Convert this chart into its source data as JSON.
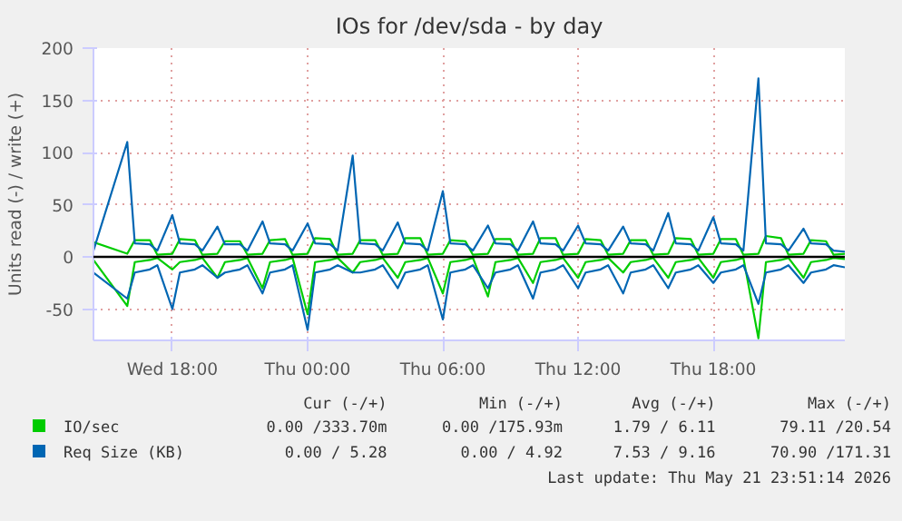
{
  "chart_data": {
    "type": "line",
    "title": "IOs for /dev/sda - by day",
    "ylabel": "Units read (-) / write (+)",
    "x": [
      "2026-05-20T14:30",
      "2026-05-20T16:00",
      "2026-05-20T16:20",
      "2026-05-20T17:00",
      "2026-05-20T17:20",
      "2026-05-20T18:00",
      "2026-05-20T18:20",
      "2026-05-20T19:00",
      "2026-05-20T19:20",
      "2026-05-20T20:00",
      "2026-05-20T20:20",
      "2026-05-20T21:00",
      "2026-05-20T21:20",
      "2026-05-20T22:00",
      "2026-05-20T22:20",
      "2026-05-20T23:00",
      "2026-05-20T23:20",
      "2026-05-21T00:00",
      "2026-05-21T00:20",
      "2026-05-21T01:00",
      "2026-05-21T01:20",
      "2026-05-21T02:00",
      "2026-05-21T02:20",
      "2026-05-21T03:00",
      "2026-05-21T03:20",
      "2026-05-21T04:00",
      "2026-05-21T04:20",
      "2026-05-21T05:00",
      "2026-05-21T05:20",
      "2026-05-21T06:00",
      "2026-05-21T06:20",
      "2026-05-21T07:00",
      "2026-05-21T07:20",
      "2026-05-21T08:00",
      "2026-05-21T08:20",
      "2026-05-21T09:00",
      "2026-05-21T09:20",
      "2026-05-21T10:00",
      "2026-05-21T10:20",
      "2026-05-21T11:00",
      "2026-05-21T11:20",
      "2026-05-21T12:00",
      "2026-05-21T12:20",
      "2026-05-21T13:00",
      "2026-05-21T13:20",
      "2026-05-21T14:00",
      "2026-05-21T14:20",
      "2026-05-21T15:00",
      "2026-05-21T15:20",
      "2026-05-21T16:00",
      "2026-05-21T16:20",
      "2026-05-21T17:00",
      "2026-05-21T17:20",
      "2026-05-21T18:00",
      "2026-05-21T18:20",
      "2026-05-21T19:00",
      "2026-05-21T19:20",
      "2026-05-21T20:00",
      "2026-05-21T20:20",
      "2026-05-21T21:00",
      "2026-05-21T21:20",
      "2026-05-21T22:00",
      "2026-05-21T22:20",
      "2026-05-21T23:00",
      "2026-05-21T23:20",
      "2026-05-21T23:50"
    ],
    "series": [
      {
        "name": "IO/sec",
        "color": "#00cc00",
        "values": [
          14,
          3,
          16,
          16,
          2,
          3,
          17,
          16,
          2,
          3,
          15,
          15,
          2,
          3,
          16,
          17,
          2,
          3,
          18,
          17,
          2,
          3,
          16,
          16,
          2,
          3,
          18,
          18,
          2,
          3,
          16,
          15,
          2,
          3,
          17,
          17,
          2,
          3,
          18,
          18,
          2,
          3,
          17,
          16,
          2,
          3,
          16,
          16,
          2,
          3,
          18,
          17,
          2,
          3,
          17,
          17,
          2,
          3,
          20,
          18,
          2,
          3,
          16,
          15,
          2,
          3
        ]
      },
      {
        "color": "#00cc00",
        "values": [
          -3,
          -47,
          -5,
          -3,
          -1,
          -12,
          -5,
          -3,
          -1,
          -20,
          -5,
          -3,
          -1,
          -30,
          -5,
          -3,
          -1,
          -55,
          -5,
          -3,
          -1,
          -15,
          -5,
          -3,
          -1,
          -20,
          -5,
          -3,
          -1,
          -35,
          -5,
          -3,
          -1,
          -38,
          -5,
          -3,
          -1,
          -25,
          -5,
          -3,
          -1,
          -20,
          -5,
          -3,
          -1,
          -15,
          -5,
          -3,
          -1,
          -20,
          -5,
          -3,
          -1,
          -20,
          -5,
          -3,
          -1,
          -78,
          -5,
          -3,
          -1,
          -20,
          -5,
          -3,
          -1,
          -2
        ]
      },
      {
        "name": "Req Size (KB)",
        "color": "#0066b3",
        "values": [
          6,
          110,
          13,
          12,
          6,
          40,
          13,
          12,
          6,
          29,
          12,
          12,
          6,
          34,
          13,
          12,
          6,
          32,
          13,
          12,
          6,
          97,
          13,
          12,
          6,
          33,
          13,
          12,
          6,
          63,
          13,
          12,
          6,
          30,
          13,
          12,
          6,
          34,
          13,
          12,
          6,
          30,
          13,
          12,
          6,
          29,
          13,
          12,
          6,
          42,
          13,
          12,
          6,
          38,
          13,
          12,
          6,
          171,
          13,
          12,
          6,
          27,
          13,
          12,
          6,
          5
        ]
      },
      {
        "color": "#0066b3",
        "values": [
          -15,
          -40,
          -15,
          -12,
          -8,
          -50,
          -15,
          -12,
          -8,
          -20,
          -15,
          -12,
          -8,
          -35,
          -15,
          -12,
          -8,
          -70,
          -15,
          -12,
          -8,
          -15,
          -15,
          -12,
          -8,
          -30,
          -15,
          -12,
          -8,
          -60,
          -15,
          -12,
          -8,
          -30,
          -15,
          -12,
          -8,
          -40,
          -15,
          -12,
          -8,
          -30,
          -15,
          -12,
          -8,
          -35,
          -15,
          -12,
          -8,
          -30,
          -15,
          -12,
          -8,
          -25,
          -15,
          -12,
          -8,
          -45,
          -15,
          -12,
          -8,
          -25,
          -15,
          -12,
          -8,
          -10
        ]
      }
    ],
    "xlim": [
      "2026-05-20T14:30",
      "2026-05-21T23:50"
    ],
    "xticks": [
      {
        "value": "2026-05-20T18:00",
        "label": "Wed 18:00"
      },
      {
        "value": "2026-05-21T00:00",
        "label": "Thu 00:00"
      },
      {
        "value": "2026-05-21T06:00",
        "label": "Thu 06:00"
      },
      {
        "value": "2026-05-21T12:00",
        "label": "Thu 12:00"
      },
      {
        "value": "2026-05-21T18:00",
        "label": "Thu 18:00"
      }
    ],
    "ylim": [
      -80,
      200
    ],
    "yticks": [
      -50,
      0,
      50,
      100,
      150,
      200
    ],
    "grid": true,
    "legend": "bottom left",
    "line_style": "solid",
    "annotations": [
      "Cur (-/+)",
      "Min (-/+)",
      "Avg (-/+)",
      "Max (-/+)",
      "0.00 /333.70m",
      "0.00 /175.93m",
      "1.79 / 6.11",
      "79.11 /20.54",
      "0.00 / 5.28",
      "0.00 / 4.92",
      "7.53 / 9.16",
      "70.90 /171.31",
      "Last update: Thu May 21 23:51:14 2026"
    ]
  }
}
